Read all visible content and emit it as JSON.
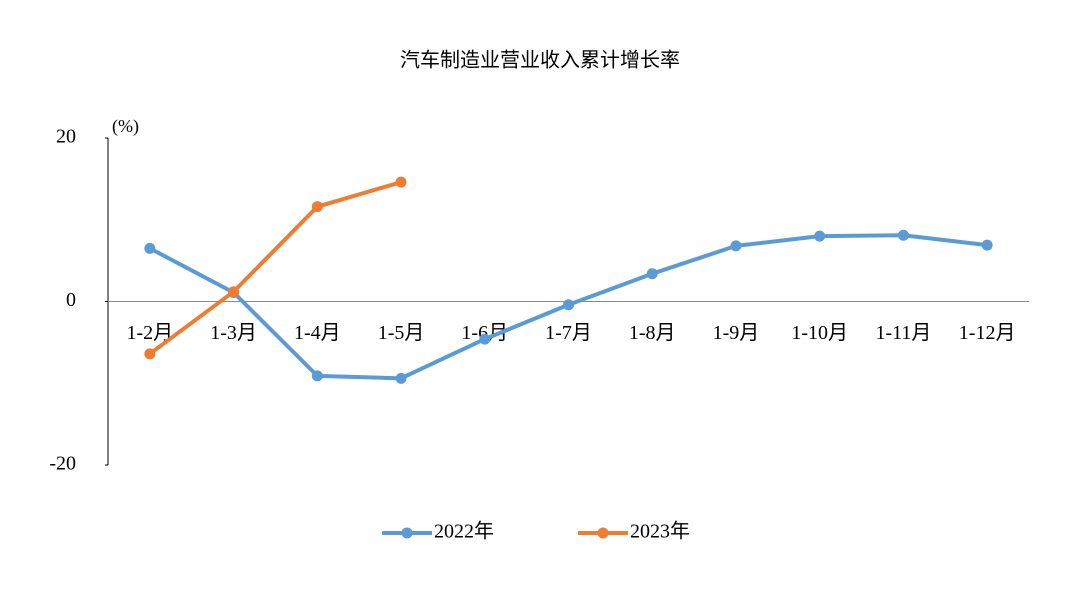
{
  "chart_data": {
    "type": "line",
    "title": "汽车制造业营业收入累计增长率",
    "y_unit": "(%)",
    "categories": [
      "1-2月",
      "1-3月",
      "1-4月",
      "1-5月",
      "1-6月",
      "1-7月",
      "1-8月",
      "1-9月",
      "1-10月",
      "1-11月",
      "1-12月"
    ],
    "series": [
      {
        "name": "2022年",
        "color": "#5b9bd5",
        "values": [
          6.5,
          1.1,
          -9.1,
          -9.4,
          -4.6,
          -0.4,
          3.4,
          6.8,
          8.0,
          8.1,
          6.9
        ]
      },
      {
        "name": "2023年",
        "color": "#ed7d31",
        "values": [
          -6.4,
          1.2,
          11.6,
          14.6,
          null,
          null,
          null,
          null,
          null,
          null,
          null
        ]
      }
    ],
    "ylim": [
      -20,
      20
    ],
    "yticks": [
      -20,
      0,
      20
    ],
    "ytick_colors": [
      "#e00000",
      "#000000",
      "#000000"
    ],
    "grid": false,
    "legend": "bottom"
  }
}
